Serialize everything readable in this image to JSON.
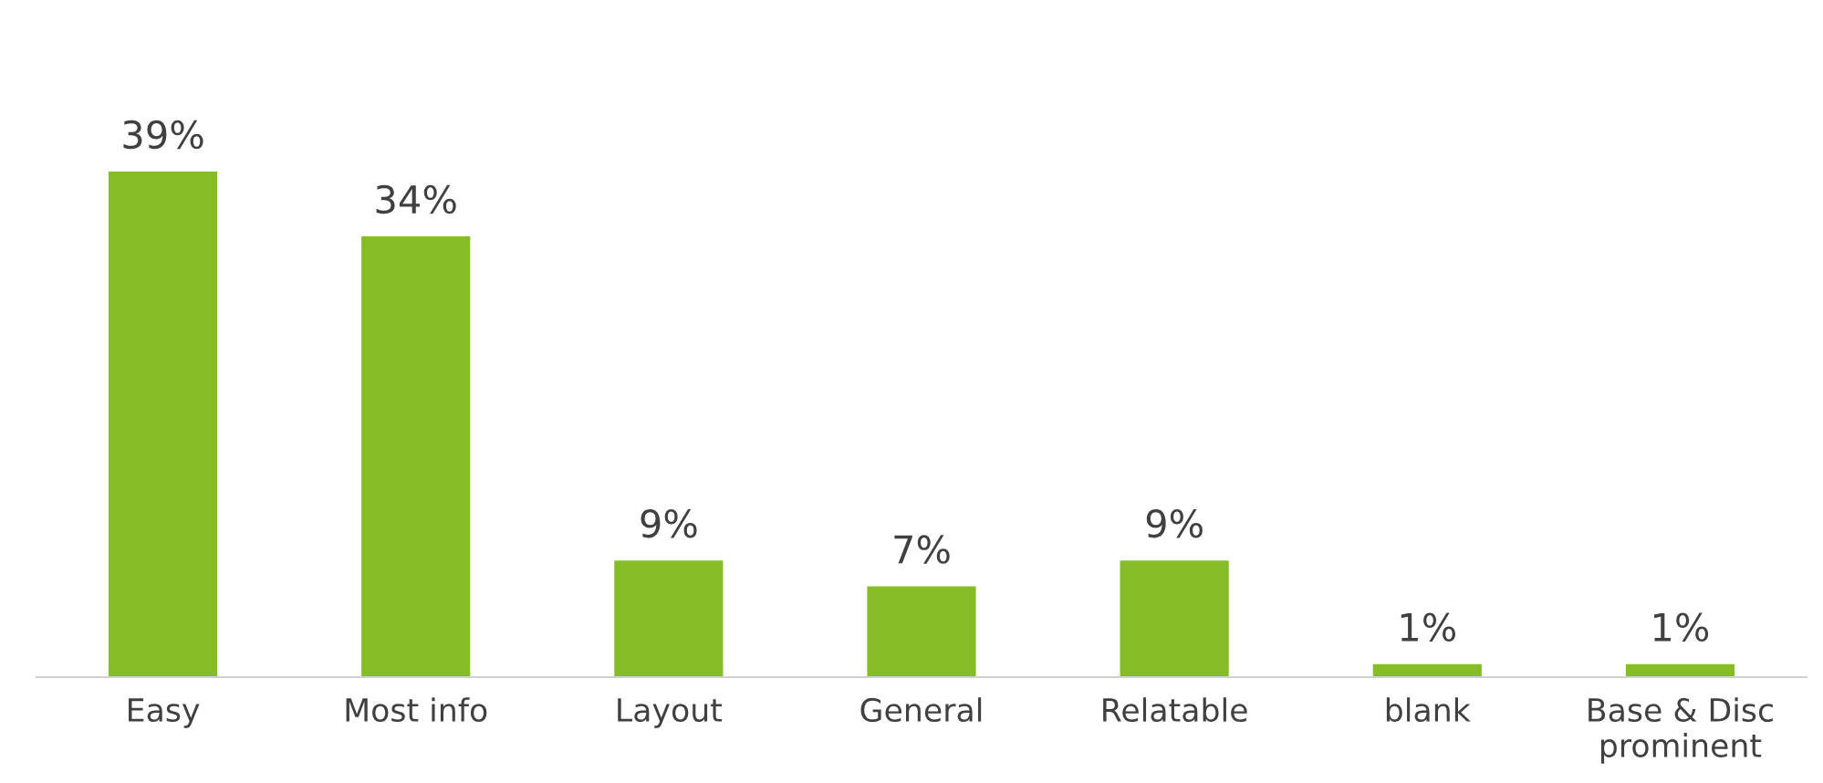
{
  "chart_data": {
    "type": "bar",
    "categories": [
      "Easy",
      "Most info",
      "Layout",
      "General",
      "Relatable",
      "blank",
      "Base & Disc\nprominent"
    ],
    "values": [
      39,
      34,
      9,
      7,
      9,
      1,
      1
    ],
    "value_labels": [
      "39%",
      "34%",
      "9%",
      "7%",
      "9%",
      "1%",
      "1%"
    ],
    "color": "#86bc25",
    "grid": false,
    "legend": false
  }
}
